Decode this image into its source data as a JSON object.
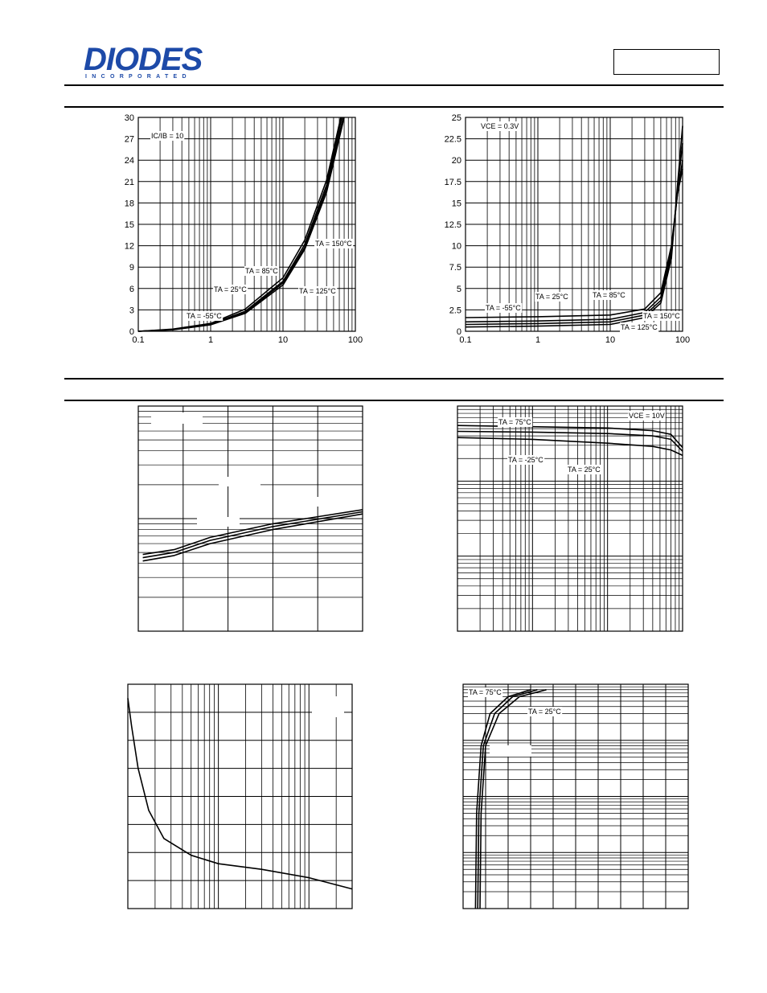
{
  "header": {
    "logo_word": "DIODES",
    "logo_sub": "INCORPORATED",
    "part_box": ""
  },
  "colors": {
    "logo": "#1d4aa8",
    "ink": "#000000"
  },
  "chart_data": [
    {
      "id": "chart1",
      "type": "line",
      "x_scale": "log",
      "xlim": [
        0.1,
        100
      ],
      "ylim": [
        0,
        30
      ],
      "x_ticks": [
        0.1,
        1,
        10,
        100
      ],
      "x_tick_labels": [
        "0.1",
        "1",
        "10",
        "100"
      ],
      "y_ticks": [
        0,
        3,
        6,
        9,
        12,
        15,
        18,
        21,
        24,
        27,
        30
      ],
      "y_tick_labels": [
        "0",
        "3",
        "6",
        "9",
        "12",
        "15",
        "18",
        "21",
        "24",
        "27",
        "30"
      ],
      "grid": true,
      "annotations": [
        "IC/IB = 10",
        "TA = 150°C",
        "TA = 85°C",
        "TA = 25°C",
        "TA = 125°C",
        "TA = -55°C"
      ],
      "series": [
        {
          "x": [
            0.1,
            0.3,
            1,
            3,
            10,
            20,
            40,
            70
          ],
          "y": [
            0,
            0.2,
            0.9,
            2.5,
            6.5,
            11.5,
            19.5,
            30
          ]
        },
        {
          "x": [
            0.1,
            0.3,
            1,
            3,
            10,
            20,
            40,
            65
          ],
          "y": [
            0,
            0.25,
            1.0,
            2.8,
            7.0,
            12.2,
            20.5,
            30
          ]
        },
        {
          "x": [
            0.1,
            0.3,
            1,
            3,
            10,
            20,
            40,
            68
          ],
          "y": [
            0,
            0.22,
            0.95,
            2.6,
            6.8,
            11.8,
            20.0,
            30
          ]
        },
        {
          "x": [
            0.1,
            0.3,
            1,
            3,
            10,
            20,
            40,
            63
          ],
          "y": [
            0,
            0.3,
            1.1,
            3.1,
            7.5,
            12.8,
            21.2,
            30
          ]
        }
      ]
    },
    {
      "id": "chart2",
      "type": "line",
      "x_scale": "log",
      "xlim": [
        0.1,
        100
      ],
      "ylim": [
        0,
        25
      ],
      "x_ticks": [
        0.1,
        1,
        10,
        100
      ],
      "x_tick_labels": [
        "0.1",
        "1",
        "10",
        "100"
      ],
      "y_ticks": [
        0,
        2.5,
        5,
        7.5,
        10,
        12.5,
        15,
        17.5,
        20,
        22.5,
        25
      ],
      "y_tick_labels": [
        "0",
        "2.5",
        "5",
        "7.5",
        "10",
        "12.5",
        "15",
        "17.5",
        "20",
        "22.5",
        "25"
      ],
      "grid": true,
      "annotations": [
        "VCE = 0.3V",
        "TA = -55°C",
        "TA = 25°C",
        "TA = 85°C",
        "TA = 150°C",
        "TA = 125°C"
      ],
      "series": [
        {
          "x": [
            0.1,
            1,
            10,
            30,
            50,
            70,
            85,
            100
          ],
          "y": [
            1.6,
            1.7,
            1.9,
            2.6,
            4.5,
            10,
            16,
            19
          ]
        },
        {
          "x": [
            0.1,
            1,
            10,
            30,
            50,
            70,
            85,
            100
          ],
          "y": [
            1.1,
            1.2,
            1.4,
            2.2,
            4.0,
            9.5,
            16,
            20
          ]
        },
        {
          "x": [
            0.1,
            1,
            10,
            30,
            50,
            70,
            85,
            100
          ],
          "y": [
            0.8,
            0.9,
            1.1,
            1.9,
            3.6,
            9.0,
            16.5,
            22
          ]
        },
        {
          "x": [
            0.1,
            1,
            10,
            30,
            50,
            70,
            85,
            100
          ],
          "y": [
            0.5,
            0.6,
            0.8,
            1.6,
            3.3,
            8.5,
            17,
            24
          ]
        }
      ]
    },
    {
      "id": "chart3",
      "type": "line",
      "x_scale": "linear",
      "y_scale": "log",
      "xlim": [
        0,
        5
      ],
      "ylim": [
        0.1,
        10
      ],
      "grid": true,
      "series": [
        {
          "x": [
            0.1,
            0.8,
            1.6,
            3,
            5
          ],
          "y": [
            0.48,
            0.53,
            0.68,
            0.9,
            1.2
          ]
        },
        {
          "x": [
            0.1,
            0.8,
            1.6,
            3,
            5
          ],
          "y": [
            0.45,
            0.5,
            0.64,
            0.85,
            1.15
          ]
        },
        {
          "x": [
            0.1,
            0.8,
            1.6,
            3,
            5
          ],
          "y": [
            0.42,
            0.47,
            0.6,
            0.8,
            1.1
          ]
        }
      ]
    },
    {
      "id": "chart4",
      "type": "line",
      "x_scale": "log",
      "y_scale": "log",
      "xlim": [
        0.1,
        100
      ],
      "ylim": [
        1,
        1000
      ],
      "grid": true,
      "annotations": [
        "TA = 75°C",
        "VCE = 10V",
        "TA = -25°C",
        "TA = 25°C"
      ],
      "series": [
        {
          "x": [
            0.1,
            1,
            10,
            40,
            70,
            100
          ],
          "y": [
            550,
            530,
            510,
            470,
            420,
            280
          ]
        },
        {
          "x": [
            0.1,
            1,
            10,
            40,
            70,
            100
          ],
          "y": [
            460,
            450,
            430,
            400,
            360,
            250
          ]
        },
        {
          "x": [
            0.1,
            1,
            10,
            40,
            70,
            100
          ],
          "y": [
            380,
            360,
            320,
            290,
            260,
            220
          ]
        }
      ]
    },
    {
      "id": "chart5",
      "type": "line",
      "x_scale": "log",
      "y_scale": "linear",
      "xlim": [
        0.1,
        30
      ],
      "ylim": [
        0,
        8
      ],
      "grid": true,
      "series": [
        {
          "x": [
            0.1,
            0.11,
            0.13,
            0.17,
            0.25,
            0.5,
            1,
            3,
            10,
            30
          ],
          "y": [
            7.5,
            6.5,
            5.0,
            3.5,
            2.5,
            1.9,
            1.6,
            1.4,
            1.1,
            0.7
          ]
        }
      ]
    },
    {
      "id": "chart6",
      "type": "line",
      "x_scale": "linear",
      "y_scale": "log",
      "xlim": [
        0,
        1
      ],
      "ylim": [
        0.0001,
        1
      ],
      "grid": true,
      "annotations": [
        "TA = 75°C",
        "TA = 25°C"
      ],
      "series": [
        {
          "x": [
            0.055,
            0.06,
            0.08,
            0.12,
            0.2,
            0.3
          ],
          "y": [
            0.0001,
            0.005,
            0.08,
            0.3,
            0.6,
            0.8
          ]
        },
        {
          "x": [
            0.065,
            0.07,
            0.09,
            0.14,
            0.22,
            0.33
          ],
          "y": [
            0.0001,
            0.005,
            0.08,
            0.3,
            0.6,
            0.8
          ]
        },
        {
          "x": [
            0.075,
            0.08,
            0.1,
            0.16,
            0.25,
            0.37
          ],
          "y": [
            0.0001,
            0.005,
            0.08,
            0.3,
            0.6,
            0.8
          ]
        }
      ]
    }
  ]
}
